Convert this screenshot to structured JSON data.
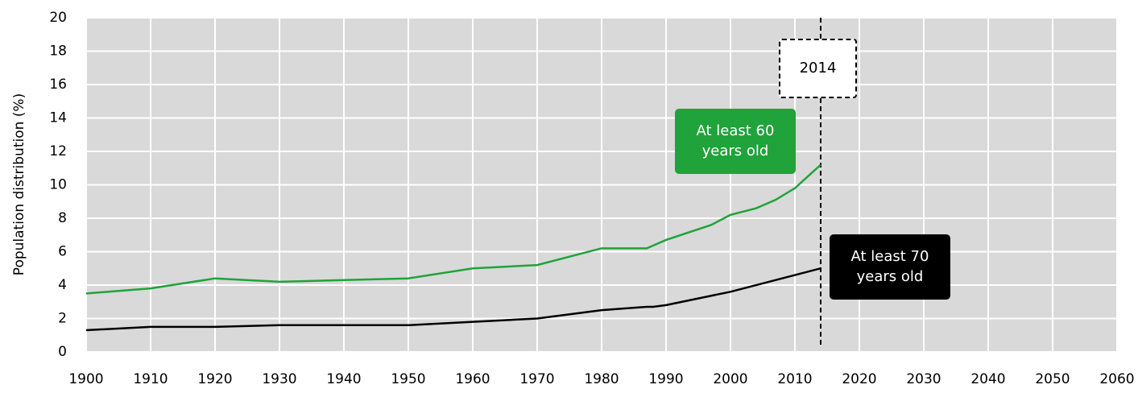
{
  "chart_data": {
    "type": "line",
    "ylabel": "Population distribution (%)",
    "xlim": [
      1900,
      2060
    ],
    "xticks": [
      1900,
      1910,
      1920,
      1930,
      1940,
      1950,
      1960,
      1970,
      1980,
      1990,
      2000,
      2010,
      2020,
      2030,
      2040,
      2050,
      2060
    ],
    "ylim": [
      0,
      20
    ],
    "yticks": [
      0,
      2,
      4,
      6,
      8,
      10,
      12,
      14,
      16,
      18,
      20
    ],
    "grid": true,
    "marker_x": 2014,
    "series": [
      {
        "name": "At least 60 years old",
        "color": "#1fa33a",
        "x": [
          1900,
          1910,
          1920,
          1930,
          1940,
          1950,
          1960,
          1970,
          1980,
          1987,
          1990,
          1997,
          2000,
          2004,
          2007,
          2010,
          2014
        ],
        "values": [
          3.5,
          3.8,
          4.4,
          4.2,
          4.3,
          4.4,
          5.0,
          5.2,
          6.2,
          6.2,
          6.7,
          7.6,
          8.2,
          8.6,
          9.1,
          9.8,
          11.2
        ]
      },
      {
        "name": "At least 70 years old",
        "color": "#000000",
        "x": [
          1900,
          1910,
          1920,
          1930,
          1950,
          1960,
          1970,
          1980,
          1987,
          1988,
          1990,
          2000,
          2014
        ],
        "values": [
          1.3,
          1.5,
          1.5,
          1.6,
          1.6,
          1.8,
          2.0,
          2.5,
          2.7,
          2.7,
          2.8,
          3.6,
          5.0
        ]
      }
    ]
  }
}
